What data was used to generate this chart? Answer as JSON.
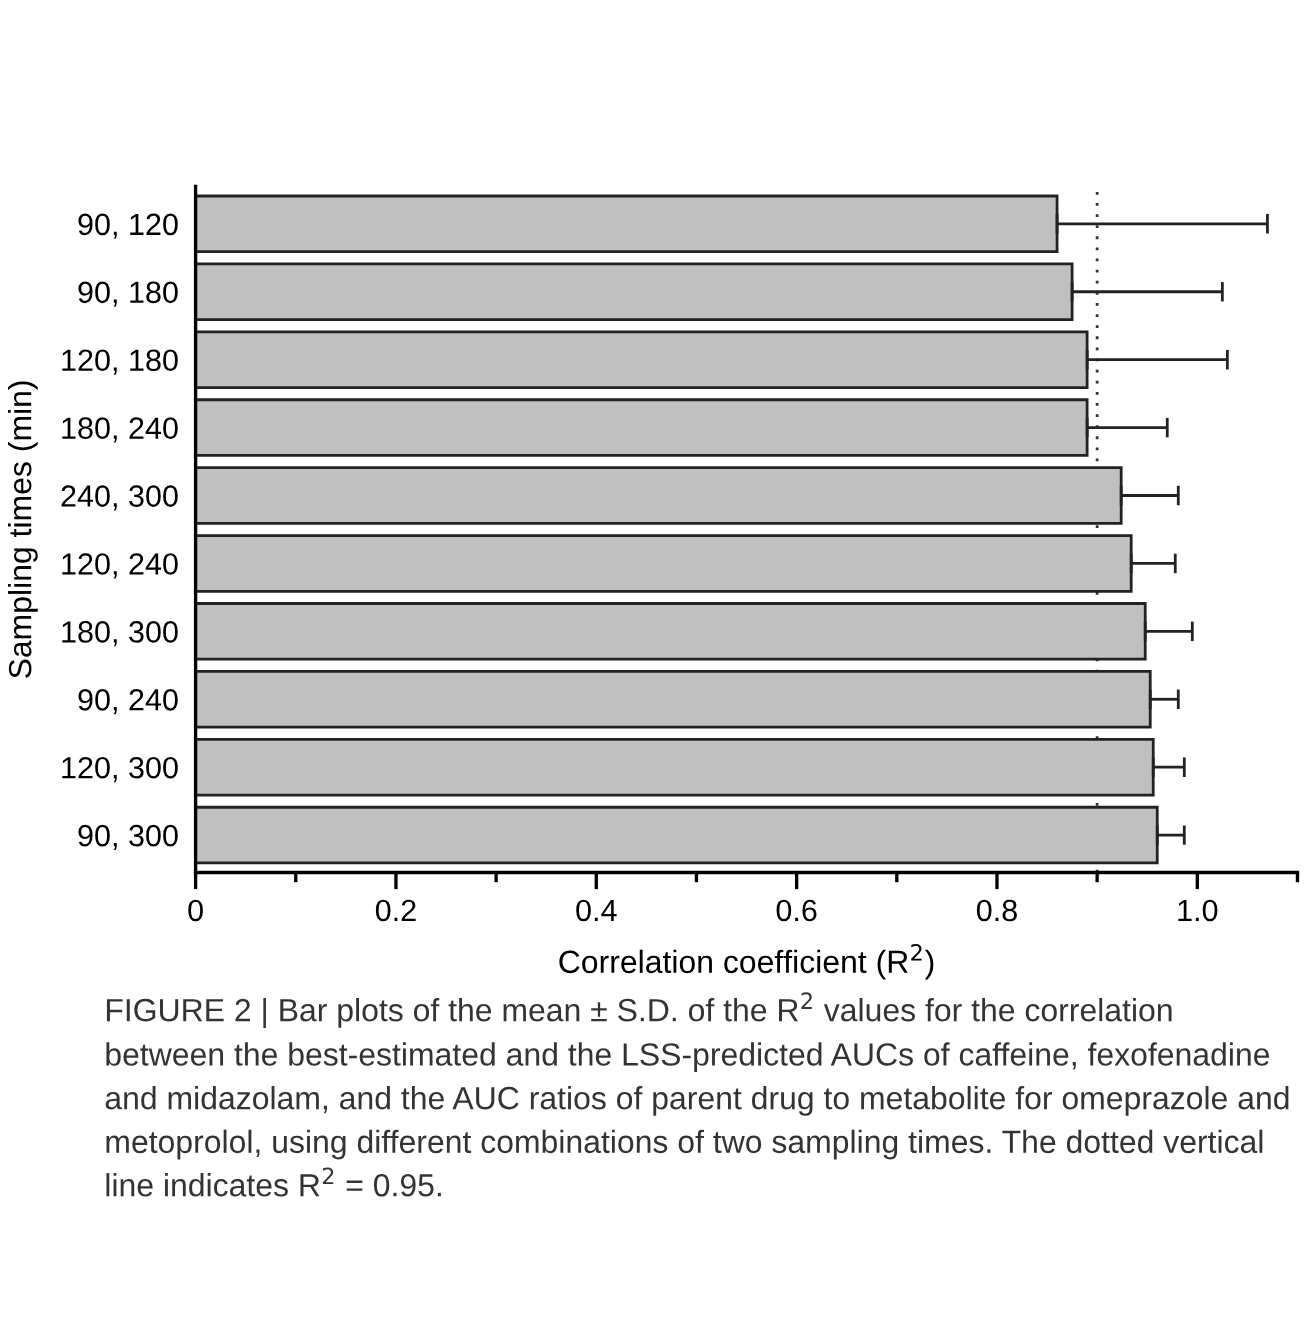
{
  "chart_data": {
    "type": "bar",
    "orientation": "horizontal",
    "categories": [
      "90, 120",
      "90, 180",
      "120, 180",
      "180, 240",
      "240, 300",
      "120, 240",
      "180, 300",
      "90, 240",
      "120, 300",
      "90, 300"
    ],
    "values": [
      0.86,
      0.875,
      0.89,
      0.89,
      0.924,
      0.934,
      0.948,
      0.953,
      0.956,
      0.96
    ],
    "errors": [
      [
        0.86,
        1.07
      ],
      [
        0.875,
        1.025
      ],
      [
        0.89,
        1.03
      ],
      [
        0.89,
        0.97
      ],
      [
        0.924,
        0.981
      ],
      [
        0.934,
        0.978
      ],
      [
        0.948,
        0.995
      ],
      [
        0.953,
        0.981
      ],
      [
        0.956,
        0.987
      ],
      [
        0.96,
        0.987
      ]
    ],
    "color": "#c0c0c0",
    "xlim": [
      0,
      1.1
    ],
    "xticks": [
      0,
      {
        "value": 0.1,
        "label": null
      },
      0.2,
      {
        "value": 0.3,
        "label": null
      },
      0.4,
      {
        "value": 0.5,
        "label": null
      },
      0.6,
      {
        "value": 0.7,
        "label": null
      },
      0.8,
      {
        "value": 0.9,
        "label": null
      },
      {
        "value": 1.0,
        "label": "1.0"
      },
      {
        "value": 1.1,
        "label": null
      }
    ],
    "xlabel": "Correlation coefficient (R$^{2}$)",
    "ylabel": "Sampling times (min)",
    "ref_lines": [
      {
        "axis": "x",
        "value": 0.9,
        "line_style": "dotted",
        "color": "#333333"
      }
    ],
    "grid": false,
    "legend": false,
    "annotations": [
      "FIGURE 2 | Bar plots of the mean ± S.D. of the R$^{2}$ values for the correlation between the best-estimated and the LSS-predicted AUCs of caffeine, fexofenadine and midazolam, and the AUC ratios of parent drug to metabolite for omeprazole and metoprolol, using different combinations of two sampling times. The dotted vertical line indicates R$^{2}$ = 0.95."
    ]
  }
}
